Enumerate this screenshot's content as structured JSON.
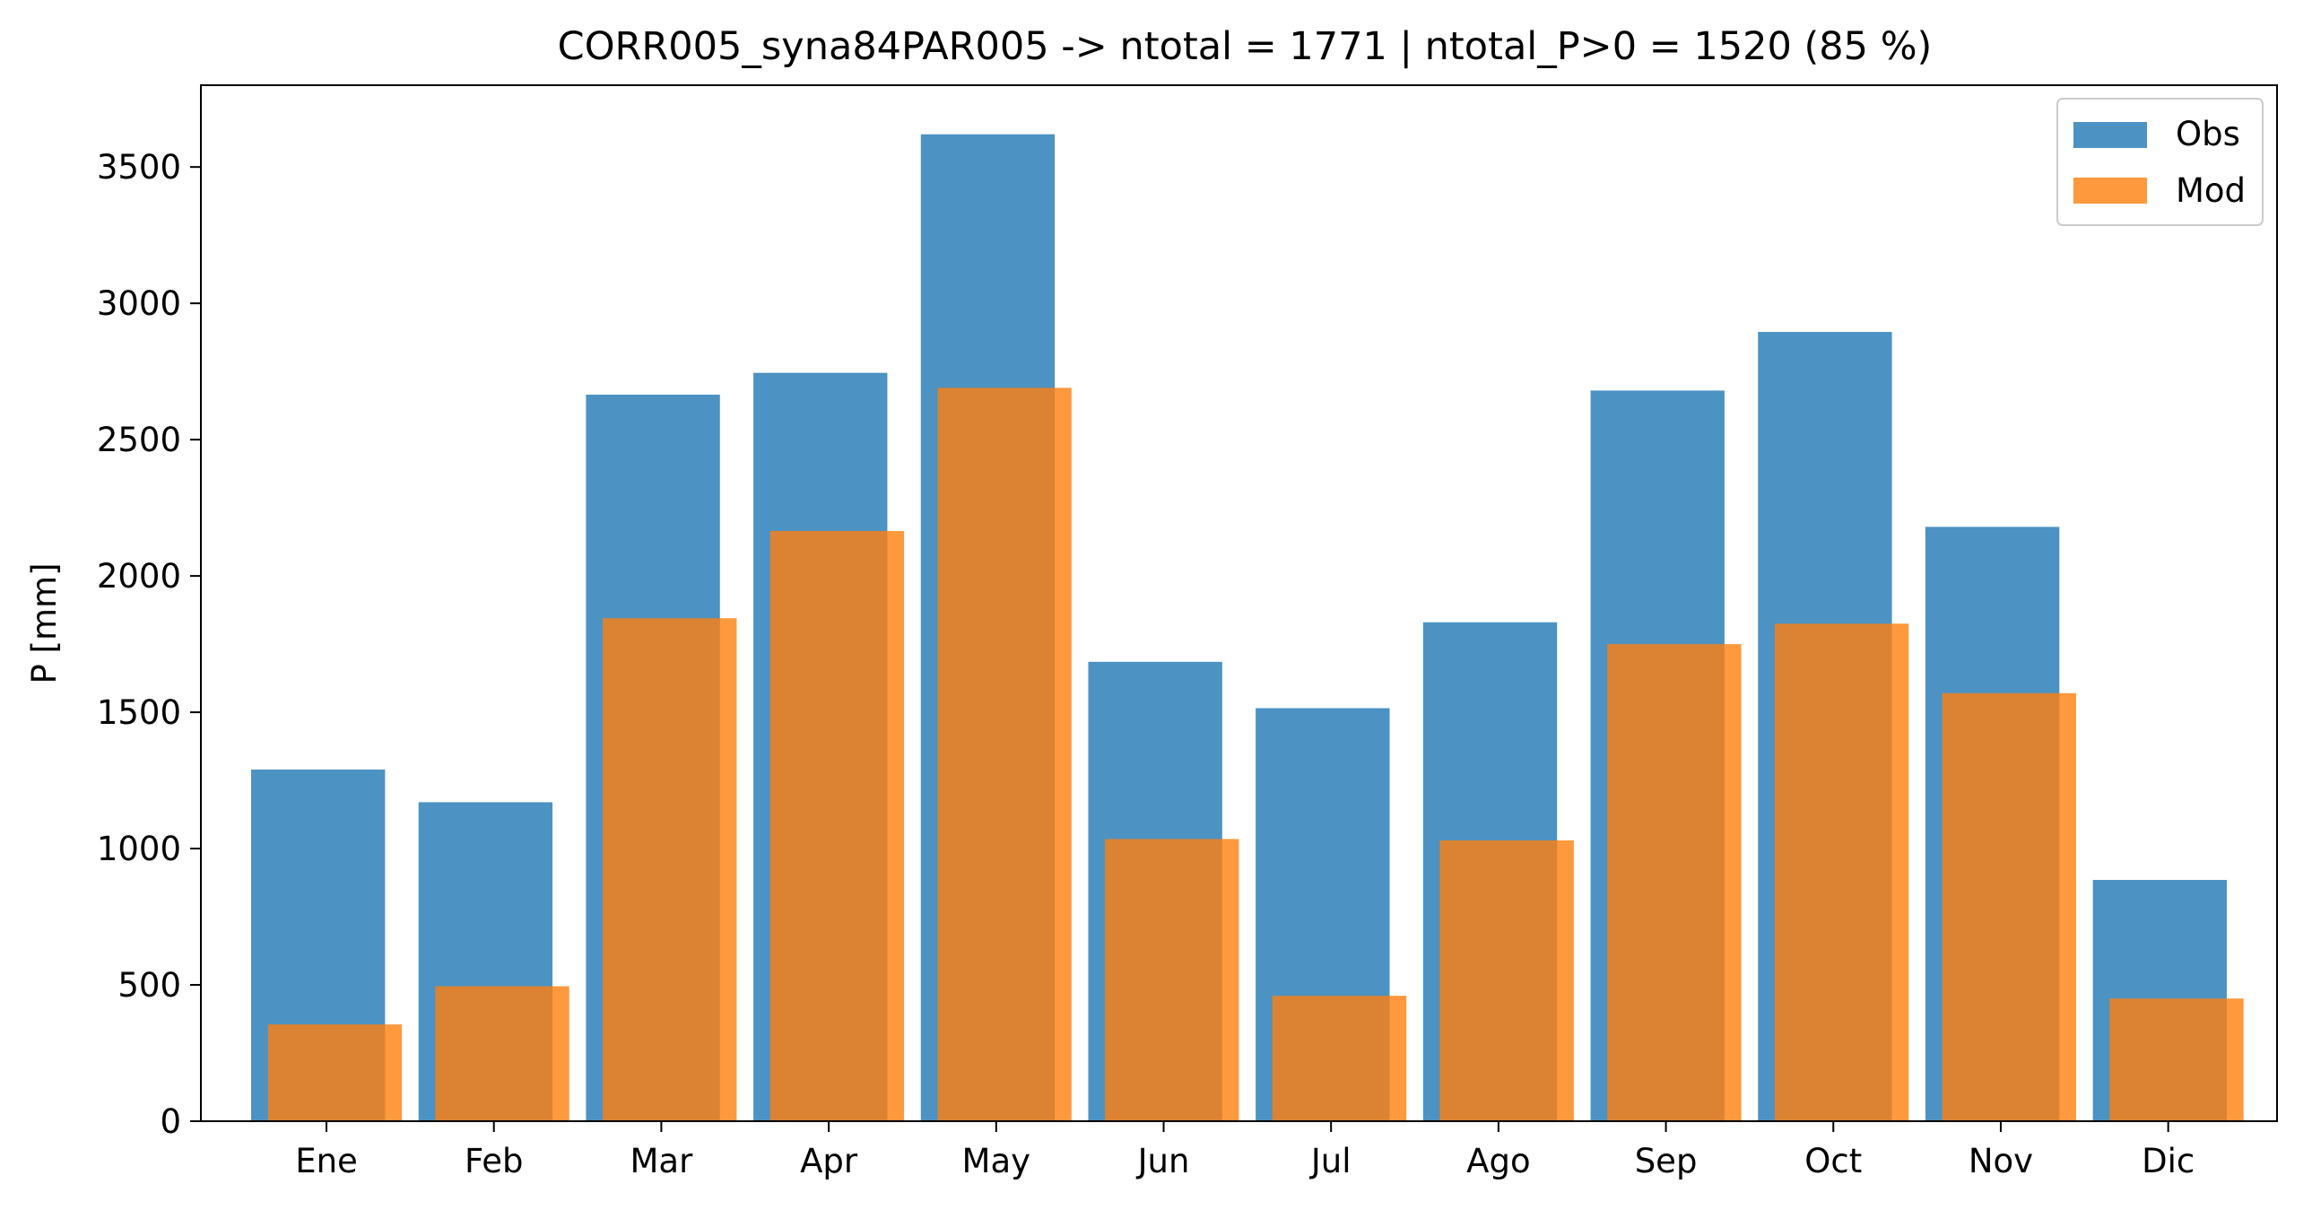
{
  "chart_data": {
    "type": "bar",
    "title": "CORR005_syna84PAR005 -> ntotal = 1771 | ntotal_P>0 = 1520 (85 %)",
    "xlabel": "",
    "ylabel": "P [mm]",
    "categories": [
      "Ene",
      "Feb",
      "Mar",
      "Apr",
      "May",
      "Jun",
      "Jul",
      "Ago",
      "Sep",
      "Oct",
      "Nov",
      "Dic"
    ],
    "series": [
      {
        "name": "Obs",
        "color": "#1f77b4",
        "opacity": 0.8,
        "values": [
          1290,
          1170,
          2665,
          2745,
          3620,
          1685,
          1515,
          1830,
          2680,
          2895,
          2180,
          885
        ]
      },
      {
        "name": "Mod",
        "color": "#ff7f0e",
        "opacity": 0.8,
        "values": [
          355,
          495,
          1845,
          2165,
          2690,
          1035,
          460,
          1030,
          1750,
          1825,
          1570,
          450
        ]
      }
    ],
    "ylim": [
      0,
      3800
    ],
    "yticks": [
      0,
      500,
      1000,
      1500,
      2000,
      2500,
      3000,
      3500
    ],
    "grid": false,
    "legend": "top-right"
  }
}
